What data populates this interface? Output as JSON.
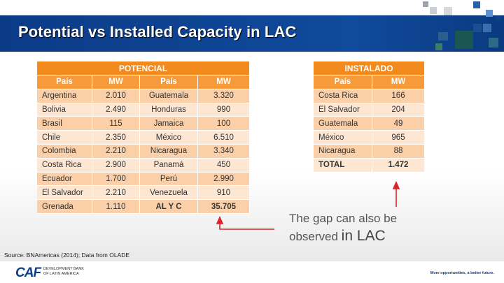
{
  "slide": {
    "title": "Potential vs Installed Capacity in LAC",
    "source": "Source: BNAmericas (2014); Data from OLADE"
  },
  "potencial": {
    "title": "POTENCIAL",
    "headers": [
      "País",
      "MW",
      "País",
      "MW"
    ],
    "rows": [
      [
        "Argentina",
        "2.010",
        "Guatemala",
        "3.320"
      ],
      [
        "Bolivia",
        "2.490",
        "Honduras",
        "990"
      ],
      [
        "Brasil",
        "115",
        "Jamaica",
        "100"
      ],
      [
        "Chile",
        "2.350",
        "México",
        "6.510"
      ],
      [
        "Colombia",
        "2.210",
        "Nicaragua",
        "3.340"
      ],
      [
        "Costa Rica",
        "2.900",
        "Panamá",
        "450"
      ],
      [
        "Ecuador",
        "1.700",
        "Perú",
        "2.990"
      ],
      [
        "El Salvador",
        "2.210",
        "Venezuela",
        "910"
      ],
      [
        "Grenada",
        "1.110",
        "AL Y C",
        "35.705"
      ]
    ]
  },
  "instalado": {
    "title": "INSTALADO",
    "headers": [
      "País",
      "MW"
    ],
    "rows": [
      [
        "Costa Rica",
        "166"
      ],
      [
        "El Salvador",
        "204"
      ],
      [
        "Guatemala",
        "49"
      ],
      [
        "México",
        "965"
      ],
      [
        "Nicaragua",
        "88"
      ],
      [
        "TOTAL",
        "1.472"
      ]
    ]
  },
  "callout": {
    "line1": "The gap can also be",
    "line2_a": "observed ",
    "line2_b": "in LAC"
  },
  "footer": {
    "logo": "CAF",
    "org_line1": "DEVELOPMENT BANK",
    "org_line2": "OF LATIN AMERICA",
    "tagline": "More opportunities, a better future."
  },
  "colors": {
    "header_blue": "#0d3f8c",
    "table_title_orange": "#f28a1e",
    "arrow_red": "#d9262b"
  }
}
